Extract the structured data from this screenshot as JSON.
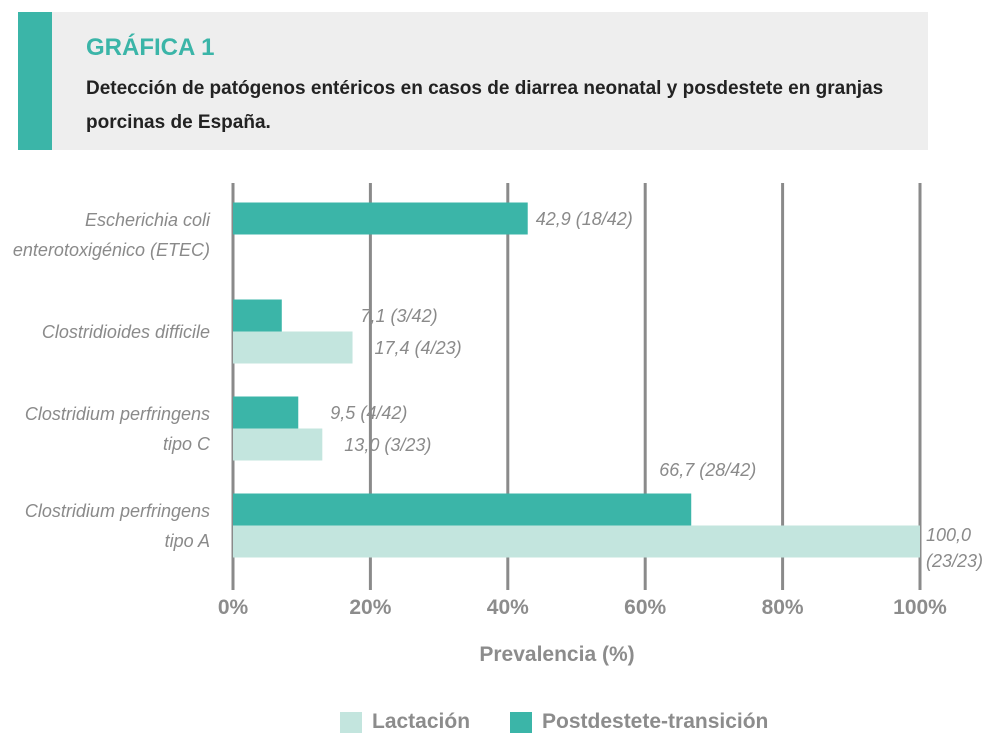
{
  "chart_data": {
    "type": "barh",
    "label": "GRÁFICA 1",
    "title": "Detección de patógenos entéricos en casos de diarrea neonatal y posdestete en granjas porcinas de España.",
    "categories": [
      "Escherichia coli enterotoxigénico (ETEC)",
      "Clostridioides difficile",
      "Clostridium perfringens tipo C",
      "Clostridium perfringens tipo A"
    ],
    "series": [
      {
        "name": "Lactación",
        "color": "#c3e5de",
        "values": [
          null,
          17.4,
          13.0,
          100.0
        ],
        "value_labels": [
          null,
          "17,4 (4/23)",
          "13,0 (3/23)",
          "100,0 (23/23)"
        ]
      },
      {
        "name": "Postdestete-transición",
        "color": "#3bb5a8",
        "values": [
          42.9,
          7.1,
          9.5,
          66.7
        ],
        "value_labels": [
          "42,9 (18/42)",
          "7,1 (3/42)",
          "9,5 (4/42)",
          "66,7 (28/42)"
        ]
      }
    ],
    "xlabel": "Prevalencia (%)",
    "xlim": [
      0,
      100
    ],
    "xticks": [
      {
        "value": 0,
        "label": "0%"
      },
      {
        "value": 20,
        "label": "20%"
      },
      {
        "value": 40,
        "label": "40%"
      },
      {
        "value": 60,
        "label": "60%"
      },
      {
        "value": 80,
        "label": "80%"
      },
      {
        "value": 100,
        "label": "100%"
      }
    ],
    "grid": true,
    "legend": "bottom"
  }
}
